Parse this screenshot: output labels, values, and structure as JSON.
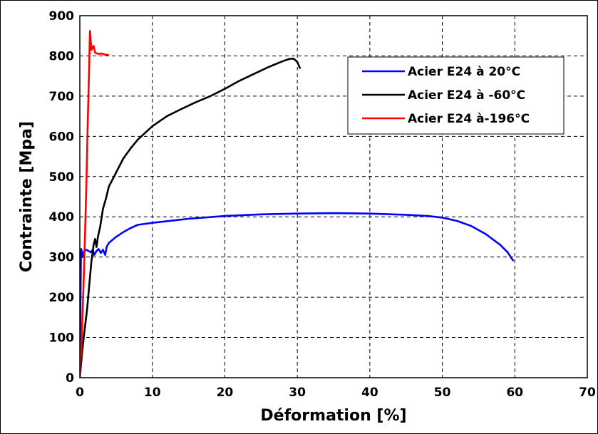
{
  "chart_data": {
    "type": "line",
    "xlabel": "Déformation [%]",
    "ylabel": "Contrainte [Mpa]",
    "xlim": [
      0,
      70
    ],
    "ylim": [
      0,
      900
    ],
    "xticks": [
      0,
      10,
      20,
      30,
      40,
      50,
      60,
      70
    ],
    "yticks": [
      0,
      100,
      200,
      300,
      400,
      500,
      600,
      700,
      800,
      900
    ],
    "grid": true,
    "legend_position": "top-right",
    "series": [
      {
        "name": "Acier E24 à 20°C",
        "color": "#0000ff",
        "points": [
          [
            0,
            0
          ],
          [
            0.05,
            100
          ],
          [
            0.1,
            200
          ],
          [
            0.15,
            300
          ],
          [
            0.2,
            320
          ],
          [
            0.4,
            300
          ],
          [
            0.6,
            315
          ],
          [
            0.9,
            318
          ],
          [
            1.2,
            315
          ],
          [
            1.5,
            312
          ],
          [
            1.8,
            318
          ],
          [
            2.0,
            305
          ],
          [
            2.3,
            315
          ],
          [
            2.6,
            320
          ],
          [
            2.9,
            310
          ],
          [
            3.2,
            318
          ],
          [
            3.5,
            305
          ],
          [
            3.7,
            325
          ],
          [
            4.0,
            335
          ],
          [
            5,
            350
          ],
          [
            6,
            362
          ],
          [
            7,
            372
          ],
          [
            8,
            380
          ],
          [
            10,
            385
          ],
          [
            15,
            395
          ],
          [
            20,
            402
          ],
          [
            25,
            406
          ],
          [
            30,
            408
          ],
          [
            35,
            409
          ],
          [
            40,
            408
          ],
          [
            45,
            405
          ],
          [
            48,
            402
          ],
          [
            50,
            398
          ],
          [
            52,
            390
          ],
          [
            54,
            377
          ],
          [
            56,
            357
          ],
          [
            58,
            330
          ],
          [
            59,
            312
          ],
          [
            59.8,
            290
          ]
        ]
      },
      {
        "name": "Acier E24 à -60°C",
        "color": "#000000",
        "points": [
          [
            0,
            0
          ],
          [
            0.3,
            60
          ],
          [
            0.6,
            110
          ],
          [
            1.0,
            170
          ],
          [
            1.3,
            230
          ],
          [
            1.6,
            290
          ],
          [
            1.9,
            330
          ],
          [
            2.1,
            345
          ],
          [
            2.3,
            325
          ],
          [
            2.5,
            350
          ],
          [
            2.8,
            375
          ],
          [
            3.2,
            420
          ],
          [
            3.6,
            445
          ],
          [
            4.0,
            475
          ],
          [
            5,
            510
          ],
          [
            6,
            545
          ],
          [
            7,
            570
          ],
          [
            8,
            592
          ],
          [
            10,
            625
          ],
          [
            12,
            650
          ],
          [
            14,
            668
          ],
          [
            16,
            685
          ],
          [
            18,
            700
          ],
          [
            20,
            718
          ],
          [
            22,
            738
          ],
          [
            24,
            755
          ],
          [
            26,
            772
          ],
          [
            28,
            787
          ],
          [
            29,
            793
          ],
          [
            29.5,
            793
          ],
          [
            30,
            785
          ],
          [
            30.4,
            768
          ]
        ]
      },
      {
        "name": "Acier E24 à-196°C",
        "color": "#ff0000",
        "points": [
          [
            0,
            0
          ],
          [
            0.3,
            120
          ],
          [
            0.6,
            280
          ],
          [
            0.9,
            480
          ],
          [
            1.1,
            640
          ],
          [
            1.3,
            780
          ],
          [
            1.4,
            862
          ],
          [
            1.6,
            815
          ],
          [
            1.9,
            825
          ],
          [
            2.1,
            808
          ],
          [
            2.5,
            805
          ],
          [
            3,
            806
          ],
          [
            3.5,
            803
          ],
          [
            4,
            802
          ]
        ]
      }
    ]
  }
}
